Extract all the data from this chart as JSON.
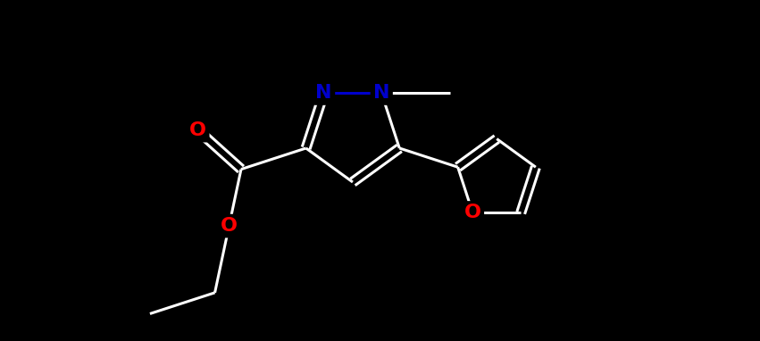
{
  "background_color": "#000000",
  "bond_color": "#ffffff",
  "N_color": "#0000cc",
  "O_color": "#ff0000",
  "bond_width": 2.2,
  "dbo": 0.06,
  "figsize": [
    8.51,
    3.82
  ],
  "dpi": 100,
  "xlim": [
    0.5,
    10.5
  ],
  "ylim": [
    -1.2,
    3.8
  ],
  "font_size": 16
}
